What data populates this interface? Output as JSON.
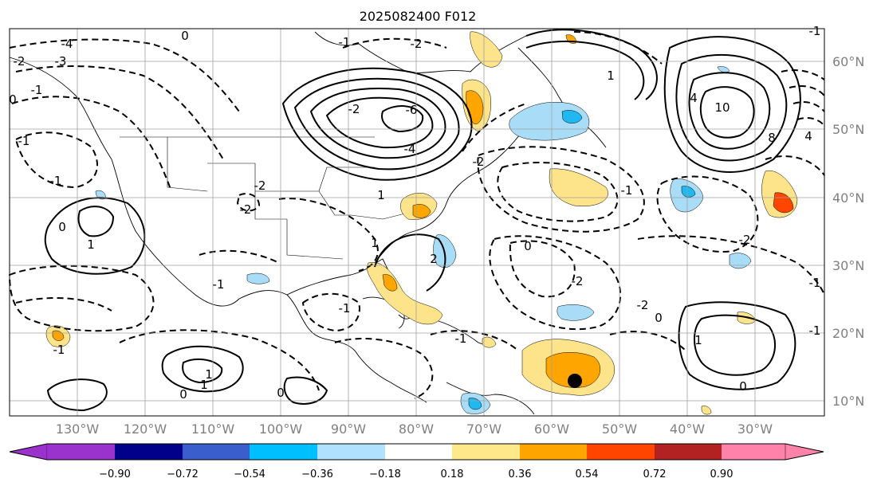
{
  "title": "2025082400 F012",
  "map": {
    "longitude_labels": [
      "130°W",
      "120°W",
      "110°W",
      "100°W",
      "90°W",
      "80°W",
      "70°W",
      "60°W",
      "50°W",
      "40°W",
      "30°W"
    ],
    "latitude_labels": [
      "60°N",
      "50°N",
      "40°N",
      "30°N",
      "20°N",
      "10°N"
    ],
    "contour_labels": [
      "-4",
      "-3",
      "-2",
      "-1",
      "0",
      "0",
      "-1",
      "1",
      "-1",
      "-2",
      "0",
      "-1",
      "1",
      "0",
      "-2",
      "-1",
      "-1",
      "-1",
      "0",
      "1",
      "-2",
      "-2",
      "0",
      "-6",
      "-4",
      "-2",
      "-2",
      "-1",
      "1",
      "-1",
      "-2",
      "-2",
      "0",
      "1",
      "0",
      "1",
      "-1",
      "4",
      "10",
      "8",
      "4",
      "-1",
      "-1",
      "2",
      "1"
    ],
    "fill_colors": {
      "neg_strong": "#1fb8f0",
      "neg_weak": "#a9dcf7",
      "pos_weak": "#fde48a",
      "pos_mid": "#ffa500",
      "pos_strong": "#ff4500"
    },
    "marker": "black-dot"
  },
  "colorbar": {
    "colors": [
      "#9a32cd",
      "#00008b",
      "#3a5fcd",
      "#00bfff",
      "#b0e2ff",
      "#ffffff",
      "#ffe88a",
      "#ffa500",
      "#ff4500",
      "#b22222",
      "#ff82ab"
    ],
    "tick_labels": [
      "−0.90",
      "−0.72",
      "−0.54",
      "−0.36",
      "−0.18",
      "0.18",
      "0.36",
      "0.54",
      "0.72",
      "0.90"
    ]
  }
}
